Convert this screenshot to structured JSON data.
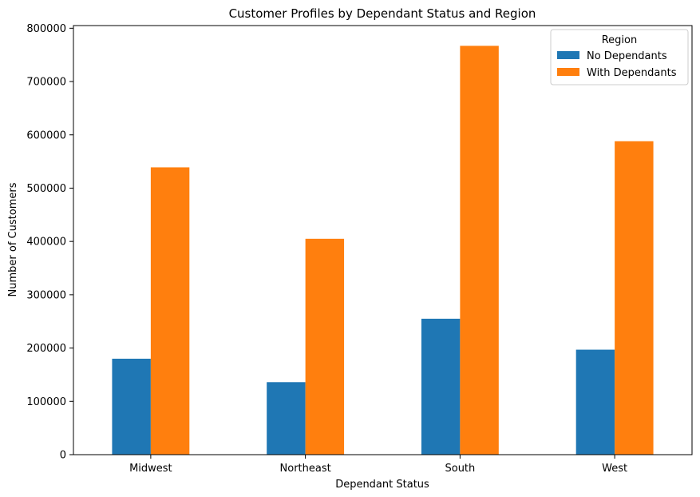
{
  "chart_data": {
    "type": "bar",
    "title": "Customer Profiles by Dependant Status and Region",
    "xlabel": "Dependant Status",
    "ylabel": "Number of Customers",
    "categories": [
      "Midwest",
      "Northeast",
      "South",
      "West"
    ],
    "series": [
      {
        "name": "No Dependants",
        "color": "#1f77b4",
        "values": [
          180000,
          136000,
          255000,
          197000
        ]
      },
      {
        "name": "With Dependants",
        "color": "#ff7f0e",
        "values": [
          539000,
          405000,
          767000,
          588000
        ]
      }
    ],
    "ylim": [
      0,
      805000
    ],
    "yticks": [
      0,
      100000,
      200000,
      300000,
      400000,
      500000,
      600000,
      700000,
      800000
    ],
    "grid": false,
    "legend": {
      "title": "Region",
      "placement": "top-right"
    }
  }
}
